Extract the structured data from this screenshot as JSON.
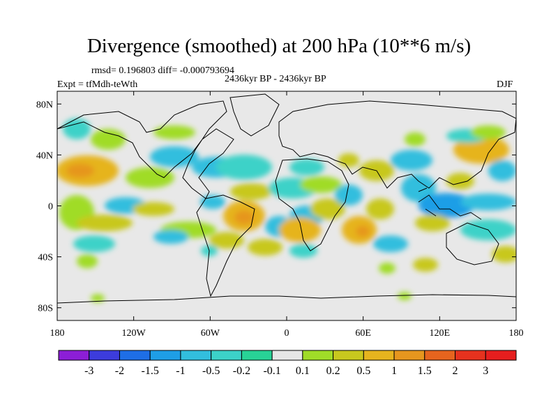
{
  "figure": {
    "title": "Divergence (smoothed) at 200 hPa (10**6 m/s)",
    "stats": "rmsd= 0.196803 diff= -0.000793694",
    "period": "2436kyr BP - 2436kyr BP",
    "experiment": "Expt = tfMdh-teWth",
    "season": "DJF"
  },
  "map": {
    "lat_ticks": [
      "80N",
      "40N",
      "0",
      "40S",
      "80S"
    ],
    "lon_ticks": [
      "180",
      "120W",
      "60W",
      "0",
      "60E",
      "120E",
      "180"
    ],
    "land_color": "#e8e8e8",
    "coast_color": "#000000"
  },
  "colorbar": {
    "levels": [
      "-3",
      "-2",
      "-1.5",
      "-1",
      "-0.5",
      "-0.2",
      "-0.1",
      "0.1",
      "0.2",
      "0.5",
      "1",
      "1.5",
      "2",
      "3"
    ],
    "colors": [
      "#8c1ed6",
      "#3c3cdc",
      "#1e6ee6",
      "#1e9ee6",
      "#32bede",
      "#3cd2c8",
      "#28d296",
      "#e6e6e6",
      "#a0dc28",
      "#c8c81e",
      "#e6b41e",
      "#e6961e",
      "#e6641e",
      "#e6321e",
      "#e61e1e"
    ]
  },
  "chart_data": {
    "type": "heatmap",
    "variable": "Divergence (smoothed) at 200 hPa",
    "units": "10**6 m/s",
    "xlim": [
      -180,
      180
    ],
    "ylim": [
      -90,
      90
    ],
    "anomaly_regions": [
      {
        "name": "n-pacific-warm",
        "lon": -155,
        "lat": 30,
        "value": 1.0
      },
      {
        "name": "trop-pacific-warm",
        "lon": -110,
        "lat": 3,
        "value": 0.5
      },
      {
        "name": "trop-pacific-cool",
        "lon": -130,
        "lat": 0,
        "value": -0.5
      },
      {
        "name": "s-america-warm",
        "lon": -35,
        "lat": -10,
        "value": 1.5
      },
      {
        "name": "africa-warm",
        "lon": 15,
        "lat": -10,
        "value": 1.0
      },
      {
        "name": "indian-ocean-warm",
        "lon": 60,
        "lat": -15,
        "value": 1.0
      },
      {
        "name": "maritime-cool",
        "lon": 130,
        "lat": 0,
        "value": -1.0
      },
      {
        "name": "w-pacific-cool",
        "lon": 165,
        "lat": 10,
        "value": -1.0
      },
      {
        "name": "n-atlantic-cool",
        "lon": -40,
        "lat": 28,
        "value": -0.5
      },
      {
        "name": "n-america-cool",
        "lon": -100,
        "lat": 40,
        "value": -0.5
      },
      {
        "name": "s-pacific-warm",
        "lon": -165,
        "lat": -30,
        "value": 0.5
      }
    ]
  }
}
